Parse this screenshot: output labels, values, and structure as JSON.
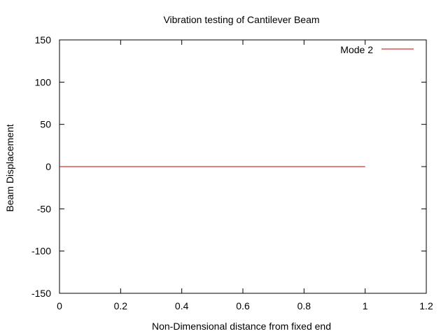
{
  "chart_data": {
    "type": "line",
    "title": "Vibration testing of Cantilever Beam",
    "xlabel": "Non-Dimensional distance from fixed end",
    "ylabel": "Beam Displacement",
    "xlim": [
      0,
      1.2
    ],
    "ylim": [
      -150,
      150
    ],
    "xticks": [
      0,
      0.2,
      0.4,
      0.6,
      0.8,
      1,
      1.2
    ],
    "xtick_labels": [
      "0",
      "0.2",
      "0.4",
      "0.6",
      "0.8",
      "1",
      "1.2"
    ],
    "yticks": [
      -150,
      -100,
      -50,
      0,
      50,
      100,
      150
    ],
    "ytick_labels": [
      "-150",
      "-100",
      "-50",
      "0",
      "50",
      "100",
      "150"
    ],
    "grid": false,
    "legend_position": "top-right",
    "series": [
      {
        "name": "Mode 2",
        "color": "#cc0000",
        "x": [
          0,
          0.1,
          0.2,
          0.3,
          0.4,
          0.5,
          0.6,
          0.7,
          0.8,
          0.9,
          1
        ],
        "y": [
          0,
          0,
          0,
          0,
          0,
          0,
          0,
          0,
          0,
          0,
          0
        ]
      }
    ]
  }
}
